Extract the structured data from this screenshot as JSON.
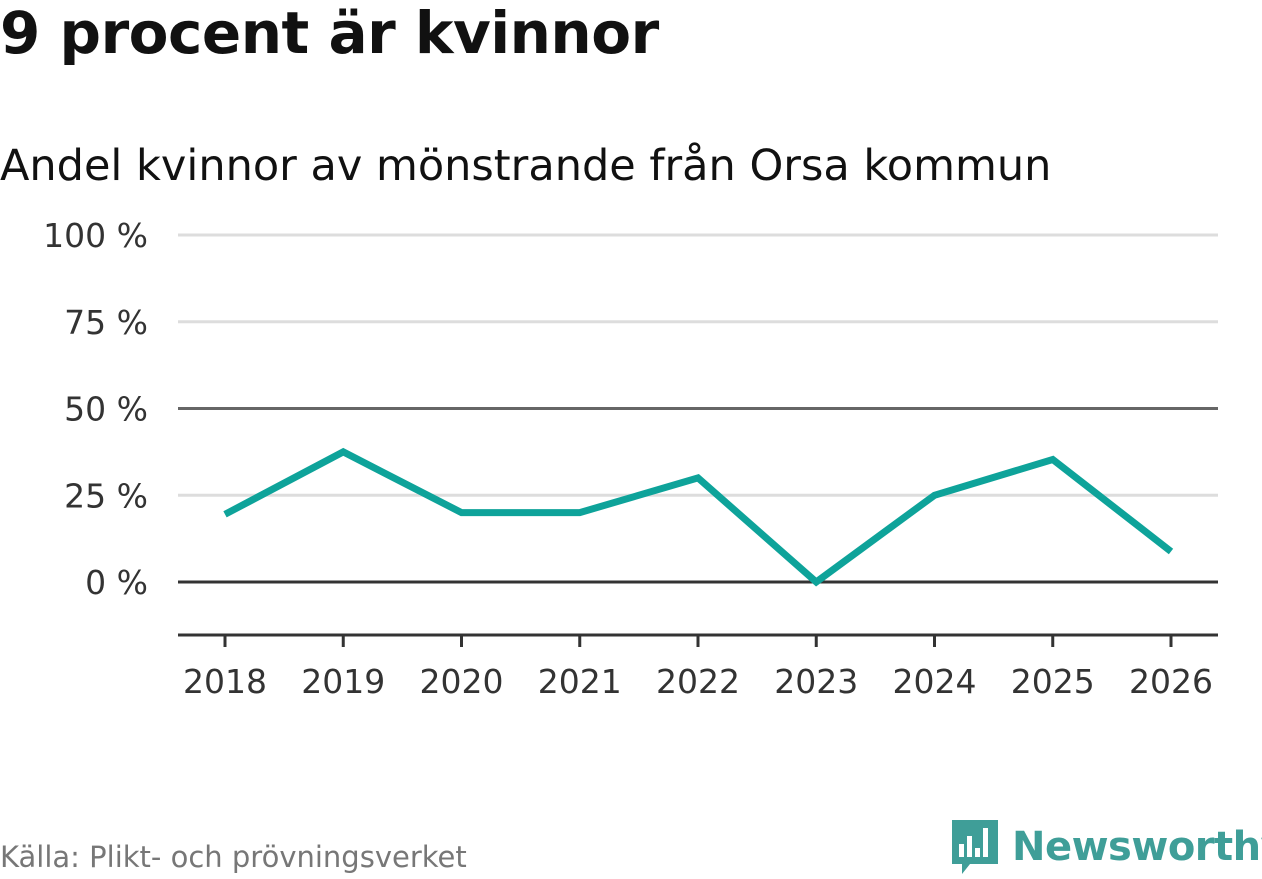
{
  "header": {
    "title": "9 procent är kvinnor",
    "subtitle": "Andel kvinnor av mönstrande från Orsa kommun"
  },
  "footer": {
    "source": "Källa: Plikt- och prövningsverket",
    "brand": "Newsworthy",
    "brand_icon": "newsworthy-logo-icon"
  },
  "colors": {
    "line": "#0ea39a",
    "grid": "#dddddd",
    "axis": "#555555",
    "brand": "#3f9e98"
  },
  "chart_data": {
    "type": "line",
    "title": "Andel kvinnor av mönstrande från Orsa kommun",
    "xlabel": "",
    "ylabel": "",
    "categories": [
      "2018",
      "2019",
      "2020",
      "2021",
      "2022",
      "2023",
      "2024",
      "2025",
      "2026"
    ],
    "series": [
      {
        "name": "Andel kvinnor",
        "values": [
          19.5,
          37.5,
          20,
          20,
          30,
          0,
          25,
          35.3,
          8.8
        ]
      }
    ],
    "ylim": [
      -15,
      100
    ],
    "yticks": [
      0,
      25,
      50,
      75,
      100
    ],
    "ytick_labels": [
      "0 %",
      "25 %",
      "50 %",
      "75 %",
      "100 %"
    ],
    "grid": true,
    "emphasized_gridlines": [
      0,
      50
    ]
  }
}
